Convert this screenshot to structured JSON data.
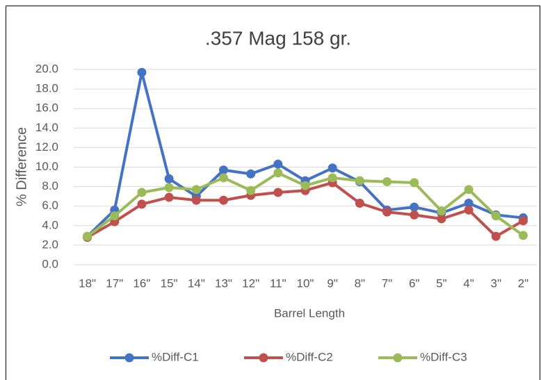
{
  "chart_data": {
    "type": "line",
    "title": ".357 Mag 158 gr.",
    "x_label": "Barrel Length",
    "y_label": "% Difference",
    "categories": [
      "18\"",
      "17\"",
      "16\"",
      "15\"",
      "14\"",
      "13\"",
      "12\"",
      "11\"",
      "10\"",
      "9\"",
      "8\"",
      "7\"",
      "6\"",
      "5\"",
      "4\"",
      "3\"",
      "2\""
    ],
    "series": [
      {
        "name": "%Diff-C1",
        "color": "#4472c4",
        "values": [
          2.9,
          5.6,
          19.7,
          8.8,
          7.0,
          9.7,
          9.3,
          10.3,
          8.6,
          9.9,
          8.5,
          5.6,
          5.9,
          5.3,
          6.3,
          5.1,
          4.8
        ]
      },
      {
        "name": "%Diff-C2",
        "color": "#c0504d",
        "values": [
          2.8,
          4.4,
          6.2,
          6.9,
          6.6,
          6.6,
          7.1,
          7.4,
          7.6,
          8.4,
          6.3,
          5.4,
          5.1,
          4.7,
          5.6,
          2.9,
          4.5
        ]
      },
      {
        "name": "%Diff-C3",
        "color": "#9bbb59",
        "values": [
          2.9,
          5.0,
          7.4,
          7.9,
          7.7,
          8.9,
          7.6,
          9.4,
          8.1,
          8.9,
          8.6,
          8.5,
          8.4,
          5.5,
          7.7,
          5.0,
          3.0
        ]
      }
    ],
    "ylim": [
      0,
      20
    ],
    "yticks": [
      {
        "value": 0,
        "label": "0.0"
      },
      {
        "value": 2,
        "label": "2.0"
      },
      {
        "value": 4,
        "label": "4.0"
      },
      {
        "value": 6,
        "label": "6.0"
      },
      {
        "value": 8,
        "label": "8.0"
      },
      {
        "value": 10,
        "label": "10.0"
      },
      {
        "value": 12,
        "label": "12.0"
      },
      {
        "value": 14,
        "label": "14.0"
      },
      {
        "value": 16,
        "label": "16.0"
      },
      {
        "value": 18,
        "label": "18.0"
      },
      {
        "value": 20,
        "label": "20.0"
      }
    ],
    "grid": true,
    "legend": "bottom"
  }
}
